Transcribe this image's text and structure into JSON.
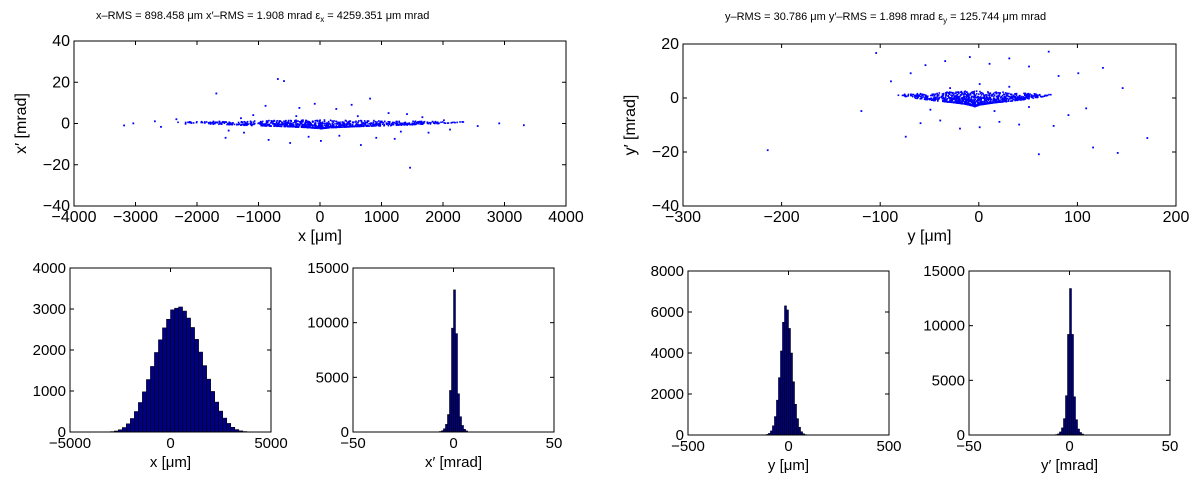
{
  "titles": {
    "left_prefix": "x–RMS = 898.458 μm    x′–RMS = 1.908 mrad    ε",
    "left_sub": "x",
    "left_suffix": " = 4259.351 μm mrad",
    "right_prefix": "y–RMS = 30.786 μm    y′–RMS = 1.898 mrad    ε",
    "right_sub": "y",
    "right_suffix": " = 125.744 μm mrad"
  },
  "chart_data": [
    {
      "id": "x-phase-space",
      "type": "scatter",
      "xlabel": "x [μm]",
      "ylabel": "x′ [mrad]",
      "xlim": [
        -4000,
        4000
      ],
      "ylim": [
        -40,
        40
      ],
      "xticks": [
        -4000,
        -3000,
        -2000,
        -1000,
        0,
        1000,
        2000,
        3000,
        4000
      ],
      "yticks": [
        -40,
        -20,
        0,
        20,
        40
      ],
      "color": "#0000ff",
      "points": [
        [
          -3200,
          -0.5
        ],
        [
          -3050,
          0.5
        ],
        [
          -2700,
          1.5
        ],
        [
          -2600,
          -1.2
        ],
        [
          -2350,
          2.5
        ],
        [
          -2200,
          0.3
        ],
        [
          -1700,
          15.0
        ],
        [
          -1550,
          -6.5
        ],
        [
          -1500,
          -3.0
        ],
        [
          -1250,
          -4.0
        ],
        [
          -1100,
          4.5
        ],
        [
          -900,
          9.0
        ],
        [
          -850,
          -7.5
        ],
        [
          -700,
          22.0
        ],
        [
          -600,
          21.0
        ],
        [
          -500,
          -9.0
        ],
        [
          -350,
          8.0
        ],
        [
          -200,
          -6.0
        ],
        [
          -100,
          10.0
        ],
        [
          0,
          -8.0
        ],
        [
          250,
          7.5
        ],
        [
          300,
          -5.5
        ],
        [
          500,
          9.5
        ],
        [
          650,
          -10.0
        ],
        [
          800,
          12.5
        ],
        [
          900,
          -6.5
        ],
        [
          1100,
          5.5
        ],
        [
          1200,
          -7.0
        ],
        [
          1400,
          5.0
        ],
        [
          1450,
          -21.0
        ],
        [
          1650,
          3.5
        ],
        [
          1750,
          -4.0
        ],
        [
          2000,
          2.0
        ],
        [
          2100,
          -2.5
        ],
        [
          2300,
          1.2
        ],
        [
          2550,
          -0.8
        ],
        [
          2900,
          0.5
        ],
        [
          3300,
          -0.4
        ],
        [
          -400,
          4.0
        ],
        [
          600,
          4.0
        ],
        [
          -1300,
          3.0
        ],
        [
          1300,
          -3.5
        ]
      ]
    },
    {
      "id": "y-phase-space",
      "type": "scatter",
      "xlabel": "y [μm]",
      "ylabel": "y′ [mrad]",
      "xlim": [
        -300,
        200
      ],
      "ylim": [
        -40,
        20
      ],
      "xticks": [
        -300,
        -200,
        -100,
        0,
        100,
        200
      ],
      "yticks": [
        -40,
        -20,
        0,
        20
      ],
      "color": "#0000ff",
      "points": [
        [
          -215,
          -19.0
        ],
        [
          -120,
          -4.5
        ],
        [
          -105,
          17.0
        ],
        [
          -90,
          6.5
        ],
        [
          -75,
          -14.0
        ],
        [
          -70,
          9.5
        ],
        [
          -60,
          -9.0
        ],
        [
          -55,
          12.5
        ],
        [
          -40,
          -8.0
        ],
        [
          -35,
          14.0
        ],
        [
          -20,
          -11.0
        ],
        [
          -10,
          15.5
        ],
        [
          0,
          -10.5
        ],
        [
          10,
          13.0
        ],
        [
          20,
          -8.5
        ],
        [
          30,
          15.0
        ],
        [
          40,
          -9.5
        ],
        [
          50,
          12.0
        ],
        [
          60,
          -20.5
        ],
        [
          70,
          17.5
        ],
        [
          75,
          -10.0
        ],
        [
          80,
          8.5
        ],
        [
          90,
          -6.0
        ],
        [
          100,
          9.5
        ],
        [
          108,
          -3.5
        ],
        [
          115,
          -18.0
        ],
        [
          125,
          11.5
        ],
        [
          140,
          -20.0
        ],
        [
          145,
          4.0
        ],
        [
          170,
          -14.5
        ],
        [
          -30,
          4.0
        ],
        [
          30,
          4.5
        ],
        [
          0,
          5.5
        ],
        [
          -50,
          -4.0
        ],
        [
          50,
          -3.0
        ],
        [
          15,
          -4.5
        ]
      ]
    },
    {
      "id": "x-histogram",
      "type": "bar",
      "xlabel": "x [μm]",
      "xlim": [
        -5000,
        5000
      ],
      "ylim": [
        0,
        4000
      ],
      "xticks": [
        -5000,
        0,
        5000
      ],
      "yticks": [
        0,
        1000,
        2000,
        3000,
        4000
      ],
      "color": "#000080",
      "bin_start": -3200,
      "bin_width": 200,
      "values": [
        5,
        10,
        25,
        55,
        110,
        200,
        330,
        500,
        720,
        980,
        1280,
        1600,
        1940,
        2250,
        2540,
        2750,
        2980,
        3020,
        3050,
        2950,
        2780,
        2550,
        2260,
        1950,
        1620,
        1290,
        990,
        730,
        510,
        340,
        210,
        115,
        60,
        28,
        12
      ]
    },
    {
      "id": "xp-histogram",
      "type": "bar",
      "xlabel": "x′ [mrad]",
      "xlim": [
        -50,
        50
      ],
      "ylim": [
        0,
        15000
      ],
      "xticks": [
        -50,
        0,
        50
      ],
      "yticks": [
        0,
        5000,
        10000,
        15000
      ],
      "color": "#000080",
      "bin_start": -7,
      "bin_width": 1,
      "values": [
        50,
        120,
        300,
        700,
        1600,
        3800,
        9500,
        13000,
        9000,
        3500,
        1400,
        600,
        250,
        100
      ]
    },
    {
      "id": "y-histogram",
      "type": "bar",
      "xlabel": "y [μm]",
      "xlim": [
        -500,
        500
      ],
      "ylim": [
        0,
        8000
      ],
      "xticks": [
        -500,
        0,
        500
      ],
      "yticks": [
        0,
        2000,
        4000,
        6000,
        8000
      ],
      "color": "#000080",
      "bin_start": -120,
      "bin_width": 10,
      "values": [
        10,
        30,
        80,
        200,
        450,
        900,
        1700,
        2800,
        4100,
        5500,
        6300,
        6100,
        5200,
        4000,
        2600,
        1500,
        800,
        380,
        160,
        60,
        20,
        10,
        5,
        2
      ]
    },
    {
      "id": "yp-histogram",
      "type": "bar",
      "xlabel": "y′ [mrad]",
      "xlim": [
        -50,
        50
      ],
      "ylim": [
        0,
        15000
      ],
      "xticks": [
        -50,
        0,
        50
      ],
      "yticks": [
        0,
        5000,
        10000,
        15000
      ],
      "color": "#000080",
      "bin_start": -7,
      "bin_width": 1,
      "values": [
        40,
        100,
        280,
        650,
        1500,
        3600,
        9200,
        13400,
        9200,
        3500,
        1400,
        550,
        230,
        90
      ]
    }
  ]
}
